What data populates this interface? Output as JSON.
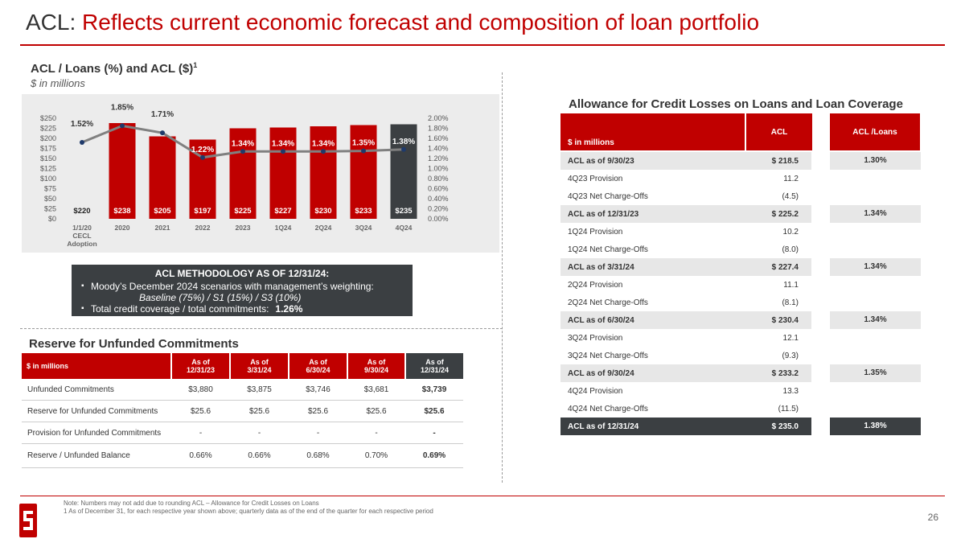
{
  "title": {
    "prefix": "ACL: ",
    "main": "Reflects current economic forecast and composition of loan portfolio"
  },
  "chart_section": {
    "heading": "ACL / Loans (%) and ACL ($)",
    "superscript": "1",
    "subheading": "$ in millions"
  },
  "chart_data": {
    "type": "bar",
    "categories": [
      [
        "1/1/20",
        "CECL",
        "Adoption"
      ],
      [
        "2020"
      ],
      [
        "2021"
      ],
      [
        "2022"
      ],
      [
        "2023"
      ],
      [
        "1Q24"
      ],
      [
        "2Q24"
      ],
      [
        "3Q24"
      ],
      [
        "4Q24"
      ]
    ],
    "series": [
      {
        "name": "ACL ($)",
        "type": "bar",
        "values": [
          220,
          238,
          205,
          197,
          225,
          227,
          230,
          233,
          235
        ],
        "labels": [
          "$220",
          "$238",
          "$205",
          "$197",
          "$225",
          "$227",
          "$230",
          "$233",
          "$235"
        ]
      },
      {
        "name": "ACL / Loans (%)",
        "type": "line",
        "values": [
          1.52,
          1.85,
          1.71,
          1.22,
          1.34,
          1.34,
          1.34,
          1.35,
          1.38
        ],
        "labels": [
          "1.52%",
          "1.85%",
          "1.71%",
          "1.22%",
          "1.34%",
          "1.34%",
          "1.34%",
          "1.35%",
          "1.38%"
        ]
      }
    ],
    "y_left_ticks": [
      "$250",
      "$225",
      "$200",
      "$175",
      "$150",
      "$125",
      "$100",
      "$75",
      "$50",
      "$25",
      "$0"
    ],
    "y_right_ticks": [
      "2.00%",
      "1.80%",
      "1.60%",
      "1.40%",
      "1.20%",
      "1.00%",
      "0.80%",
      "0.60%",
      "0.40%",
      "0.20%",
      "0.00%"
    ],
    "ylim_left": [
      0,
      250
    ],
    "ylim_right": [
      0,
      2.0
    ],
    "colors": {
      "bar": "#c00000",
      "bar_last": "#3b3f42",
      "line": "#808080",
      "marker": "#1f3a6b"
    }
  },
  "methodology": {
    "heading": "ACL METHODOLOGY AS OF 12/31/24:",
    "item1": "Moody’s December 2024 scenarios with management’s weighting:",
    "item1_detail": "Baseline (75%) / S1 (15%) / S3 (10%)",
    "item2": "Total credit coverage / total commitments:",
    "item2_value": "1.26%"
  },
  "unfunded": {
    "heading": "Reserve for Unfunded Commitments",
    "header_label": "$ in millions",
    "columns": [
      [
        "As of",
        "12/31/23"
      ],
      [
        "As of",
        "3/31/24"
      ],
      [
        "As of",
        "6/30/24"
      ],
      [
        "As of",
        "9/30/24"
      ],
      [
        "As of",
        "12/31/24"
      ]
    ],
    "rows": [
      {
        "label": "Unfunded Commitments",
        "values": [
          "$3,880",
          "$3,875",
          "$3,746",
          "$3,681",
          "$3,739"
        ]
      },
      {
        "label": "Reserve for Unfunded Commitments",
        "values": [
          "$25.6",
          "$25.6",
          "$25.6",
          "$25.6",
          "$25.6"
        ]
      },
      {
        "label": "Provision for Unfunded Commitments",
        "values": [
          "-",
          "-",
          "-",
          "-",
          "-"
        ]
      },
      {
        "label": "Reserve / Unfunded Balance",
        "values": [
          "0.66%",
          "0.66%",
          "0.68%",
          "0.70%",
          "0.69%"
        ]
      }
    ]
  },
  "acl_table": {
    "heading": "Allowance for Credit Losses on Loans and Loan Coverage",
    "header_label": "$ in millions",
    "col_acl": "ACL",
    "col_ratio": [
      "ACL /",
      "Loans"
    ],
    "rows": [
      {
        "label": "ACL as of 9/30/23",
        "value": "$ 218.5",
        "ratio": "1.30%",
        "style": "hl"
      },
      {
        "label": "4Q23 Provision",
        "value": "11.2",
        "ratio": "",
        "style": ""
      },
      {
        "label": "4Q23 Net Charge-Offs",
        "value": "(4.5)",
        "ratio": "",
        "style": ""
      },
      {
        "label": "ACL as of 12/31/23",
        "value": "$ 225.2",
        "ratio": "1.34%",
        "style": "hl"
      },
      {
        "label": "1Q24 Provision",
        "value": "10.2",
        "ratio": "",
        "style": ""
      },
      {
        "label": "1Q24 Net Charge-Offs",
        "value": "(8.0)",
        "ratio": "",
        "style": ""
      },
      {
        "label": "ACL as of 3/31/24",
        "value": "$ 227.4",
        "ratio": "1.34%",
        "style": "hl"
      },
      {
        "label": "2Q24 Provision",
        "value": "11.1",
        "ratio": "",
        "style": ""
      },
      {
        "label": "2Q24 Net Charge-Offs",
        "value": "(8.1)",
        "ratio": "",
        "style": ""
      },
      {
        "label": "ACL as of 6/30/24",
        "value": "$ 230.4",
        "ratio": "1.34%",
        "style": "hl"
      },
      {
        "label": "3Q24 Provision",
        "value": "12.1",
        "ratio": "",
        "style": ""
      },
      {
        "label": "3Q24 Net Charge-Offs",
        "value": "(9.3)",
        "ratio": "",
        "style": ""
      },
      {
        "label": "ACL as of 9/30/24",
        "value": "$ 233.2",
        "ratio": "1.35%",
        "style": "hl"
      },
      {
        "label": "4Q24 Provision",
        "value": "13.3",
        "ratio": "",
        "style": ""
      },
      {
        "label": "4Q24 Net Charge-Offs",
        "value": "(11.5)",
        "ratio": "",
        "style": ""
      },
      {
        "label": "ACL as of 12/31/24",
        "value": "$ 235.0",
        "ratio": "1.38%",
        "style": "hl dk"
      }
    ]
  },
  "footer": {
    "note1": "Note: Numbers may not add due to rounding    ACL – Allowance for Credit Losses on Loans",
    "note2": "1   As of December 31, for each respective year shown above; quarterly data as of the end of the quarter for each respective period",
    "page": "26"
  }
}
